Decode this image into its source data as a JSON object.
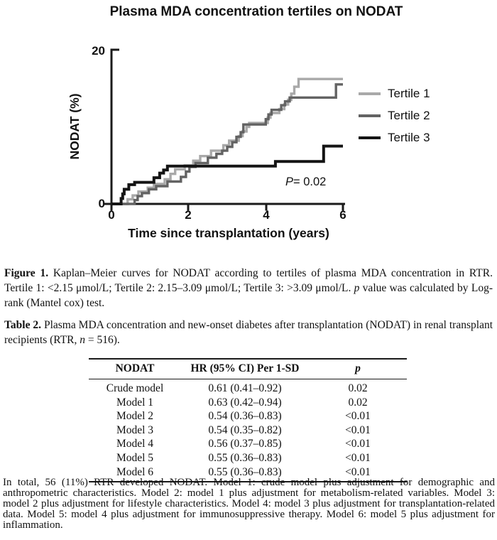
{
  "chart_data": {
    "type": "line",
    "variant": "kaplan_meier_step",
    "title": "Plasma MDA concentration tertiles on NODAT",
    "xlabel": "Time since transplantation (years)",
    "ylabel": "NODAT (%)",
    "xlim": [
      0,
      6
    ],
    "ylim": [
      0,
      20
    ],
    "x_ticks": [
      "0",
      "2",
      "4",
      "6"
    ],
    "y_ticks": [
      "0",
      "20"
    ],
    "grid": false,
    "legend_position": "right",
    "annotation": "P= 0.02",
    "series": [
      {
        "name": "Tertile 1",
        "color": "#a9a9a9",
        "stroke_width": 3.4,
        "steps": [
          [
            0.42,
            0.6
          ],
          [
            0.55,
            1.1
          ],
          [
            0.7,
            1.6
          ],
          [
            0.94,
            2.1
          ],
          [
            1.1,
            2.6
          ],
          [
            1.38,
            3.2
          ],
          [
            1.53,
            3.9
          ],
          [
            1.65,
            4.5
          ],
          [
            1.9,
            5.0
          ],
          [
            2.12,
            5.6
          ],
          [
            2.3,
            6.2
          ],
          [
            2.58,
            6.9
          ],
          [
            2.9,
            7.6
          ],
          [
            3.05,
            8.2
          ],
          [
            3.3,
            8.8
          ],
          [
            3.4,
            9.4
          ],
          [
            3.5,
            10.0
          ],
          [
            3.57,
            10.5
          ],
          [
            4.05,
            11.2
          ],
          [
            4.12,
            11.8
          ],
          [
            4.35,
            12.3
          ],
          [
            4.48,
            12.9
          ],
          [
            4.58,
            13.5
          ],
          [
            4.66,
            14.3
          ],
          [
            4.74,
            15.2
          ],
          [
            4.85,
            16.2
          ]
        ]
      },
      {
        "name": "Tertile 2",
        "color": "#636363",
        "stroke_width": 3.4,
        "steps": [
          [
            0.6,
            0.5
          ],
          [
            0.68,
            1.0
          ],
          [
            0.79,
            1.4
          ],
          [
            0.97,
            1.9
          ],
          [
            1.16,
            2.3
          ],
          [
            1.45,
            2.9
          ],
          [
            1.8,
            3.5
          ],
          [
            1.93,
            4.2
          ],
          [
            2.02,
            4.8
          ],
          [
            2.18,
            5.3
          ],
          [
            2.5,
            6.0
          ],
          [
            2.72,
            6.5
          ],
          [
            2.87,
            6.9
          ],
          [
            3.0,
            7.4
          ],
          [
            3.13,
            8.0
          ],
          [
            3.24,
            8.7
          ],
          [
            3.35,
            9.3
          ],
          [
            3.42,
            10.3
          ],
          [
            4.0,
            11.0
          ],
          [
            4.07,
            11.6
          ],
          [
            4.15,
            12.2
          ],
          [
            4.4,
            12.8
          ],
          [
            4.5,
            13.3
          ],
          [
            4.62,
            13.8
          ],
          [
            5.82,
            15.5
          ]
        ]
      },
      {
        "name": "Tertile 3",
        "color": "#141414",
        "stroke_width": 4,
        "steps": [
          [
            0.25,
            0.7
          ],
          [
            0.29,
            1.3
          ],
          [
            0.33,
            1.9
          ],
          [
            0.45,
            2.5
          ],
          [
            0.6,
            2.8
          ],
          [
            1.1,
            3.4
          ],
          [
            1.25,
            4.0
          ],
          [
            1.35,
            4.4
          ],
          [
            1.45,
            4.9
          ],
          [
            4.25,
            5.5
          ],
          [
            5.5,
            7.5
          ]
        ]
      }
    ]
  },
  "p_annotation_rich": [
    {
      "t": "P",
      "i": true
    },
    {
      "t": "= 0.02"
    }
  ],
  "figure_caption_rich": [
    {
      "t": "Figure 1. ",
      "b": true
    },
    {
      "t": "Kaplan–Meier curves for NODAT according to tertiles of plasma MDA concentration in RTR. Tertile 1: <2.15 μmol/L; Tertile 2: 2.15–3.09 μmol/L; Tertile 3: >3.09 μmol/L. "
    },
    {
      "t": "p",
      "i": true
    },
    {
      "t": " value was calculated by Log-rank (Mantel cox) test."
    }
  ],
  "table_caption_rich": [
    {
      "t": "Table 2. ",
      "b": true
    },
    {
      "t": "Plasma MDA concentration and new-onset diabetes after transplantation (NODAT) in renal transplant recipients (RTR, "
    },
    {
      "t": "n",
      "i": true
    },
    {
      "t": " = 516)."
    }
  ],
  "table": {
    "columns": [
      "NODAT",
      "HR (95% CI) Per 1-SD",
      "p"
    ],
    "rows": [
      [
        "Crude model",
        "0.61 (0.41–0.92)",
        "0.02"
      ],
      [
        "Model 1",
        "0.63 (0.42–0.94)",
        "0.02"
      ],
      [
        "Model 2",
        "0.54 (0.36–0.83)",
        "<0.01"
      ],
      [
        "Model 3",
        "0.54 (0.35–0.82)",
        "<0.01"
      ],
      [
        "Model 4",
        "0.56 (0.37–0.85)",
        "<0.01"
      ],
      [
        "Model 5",
        "0.55 (0.36–0.83)",
        "<0.01"
      ],
      [
        "Model 6",
        "0.55 (0.36–0.83)",
        "<0.01"
      ]
    ]
  },
  "footnote_text": "In total, 56 (11%) RTR developed NODAT. Model 1: crude model plus adjustment for demographic and anthropometric characteristics. Model 2: model 1 plus adjustment for metabolism-related variables. Model 3: model 2 plus adjustment for lifestyle characteristics. Model 4: model 3 plus adjustment for transplantation-related data. Model 5: model 4 plus adjustment for immunosuppressive therapy. Model 6: model 5 plus adjustment for inflammation."
}
